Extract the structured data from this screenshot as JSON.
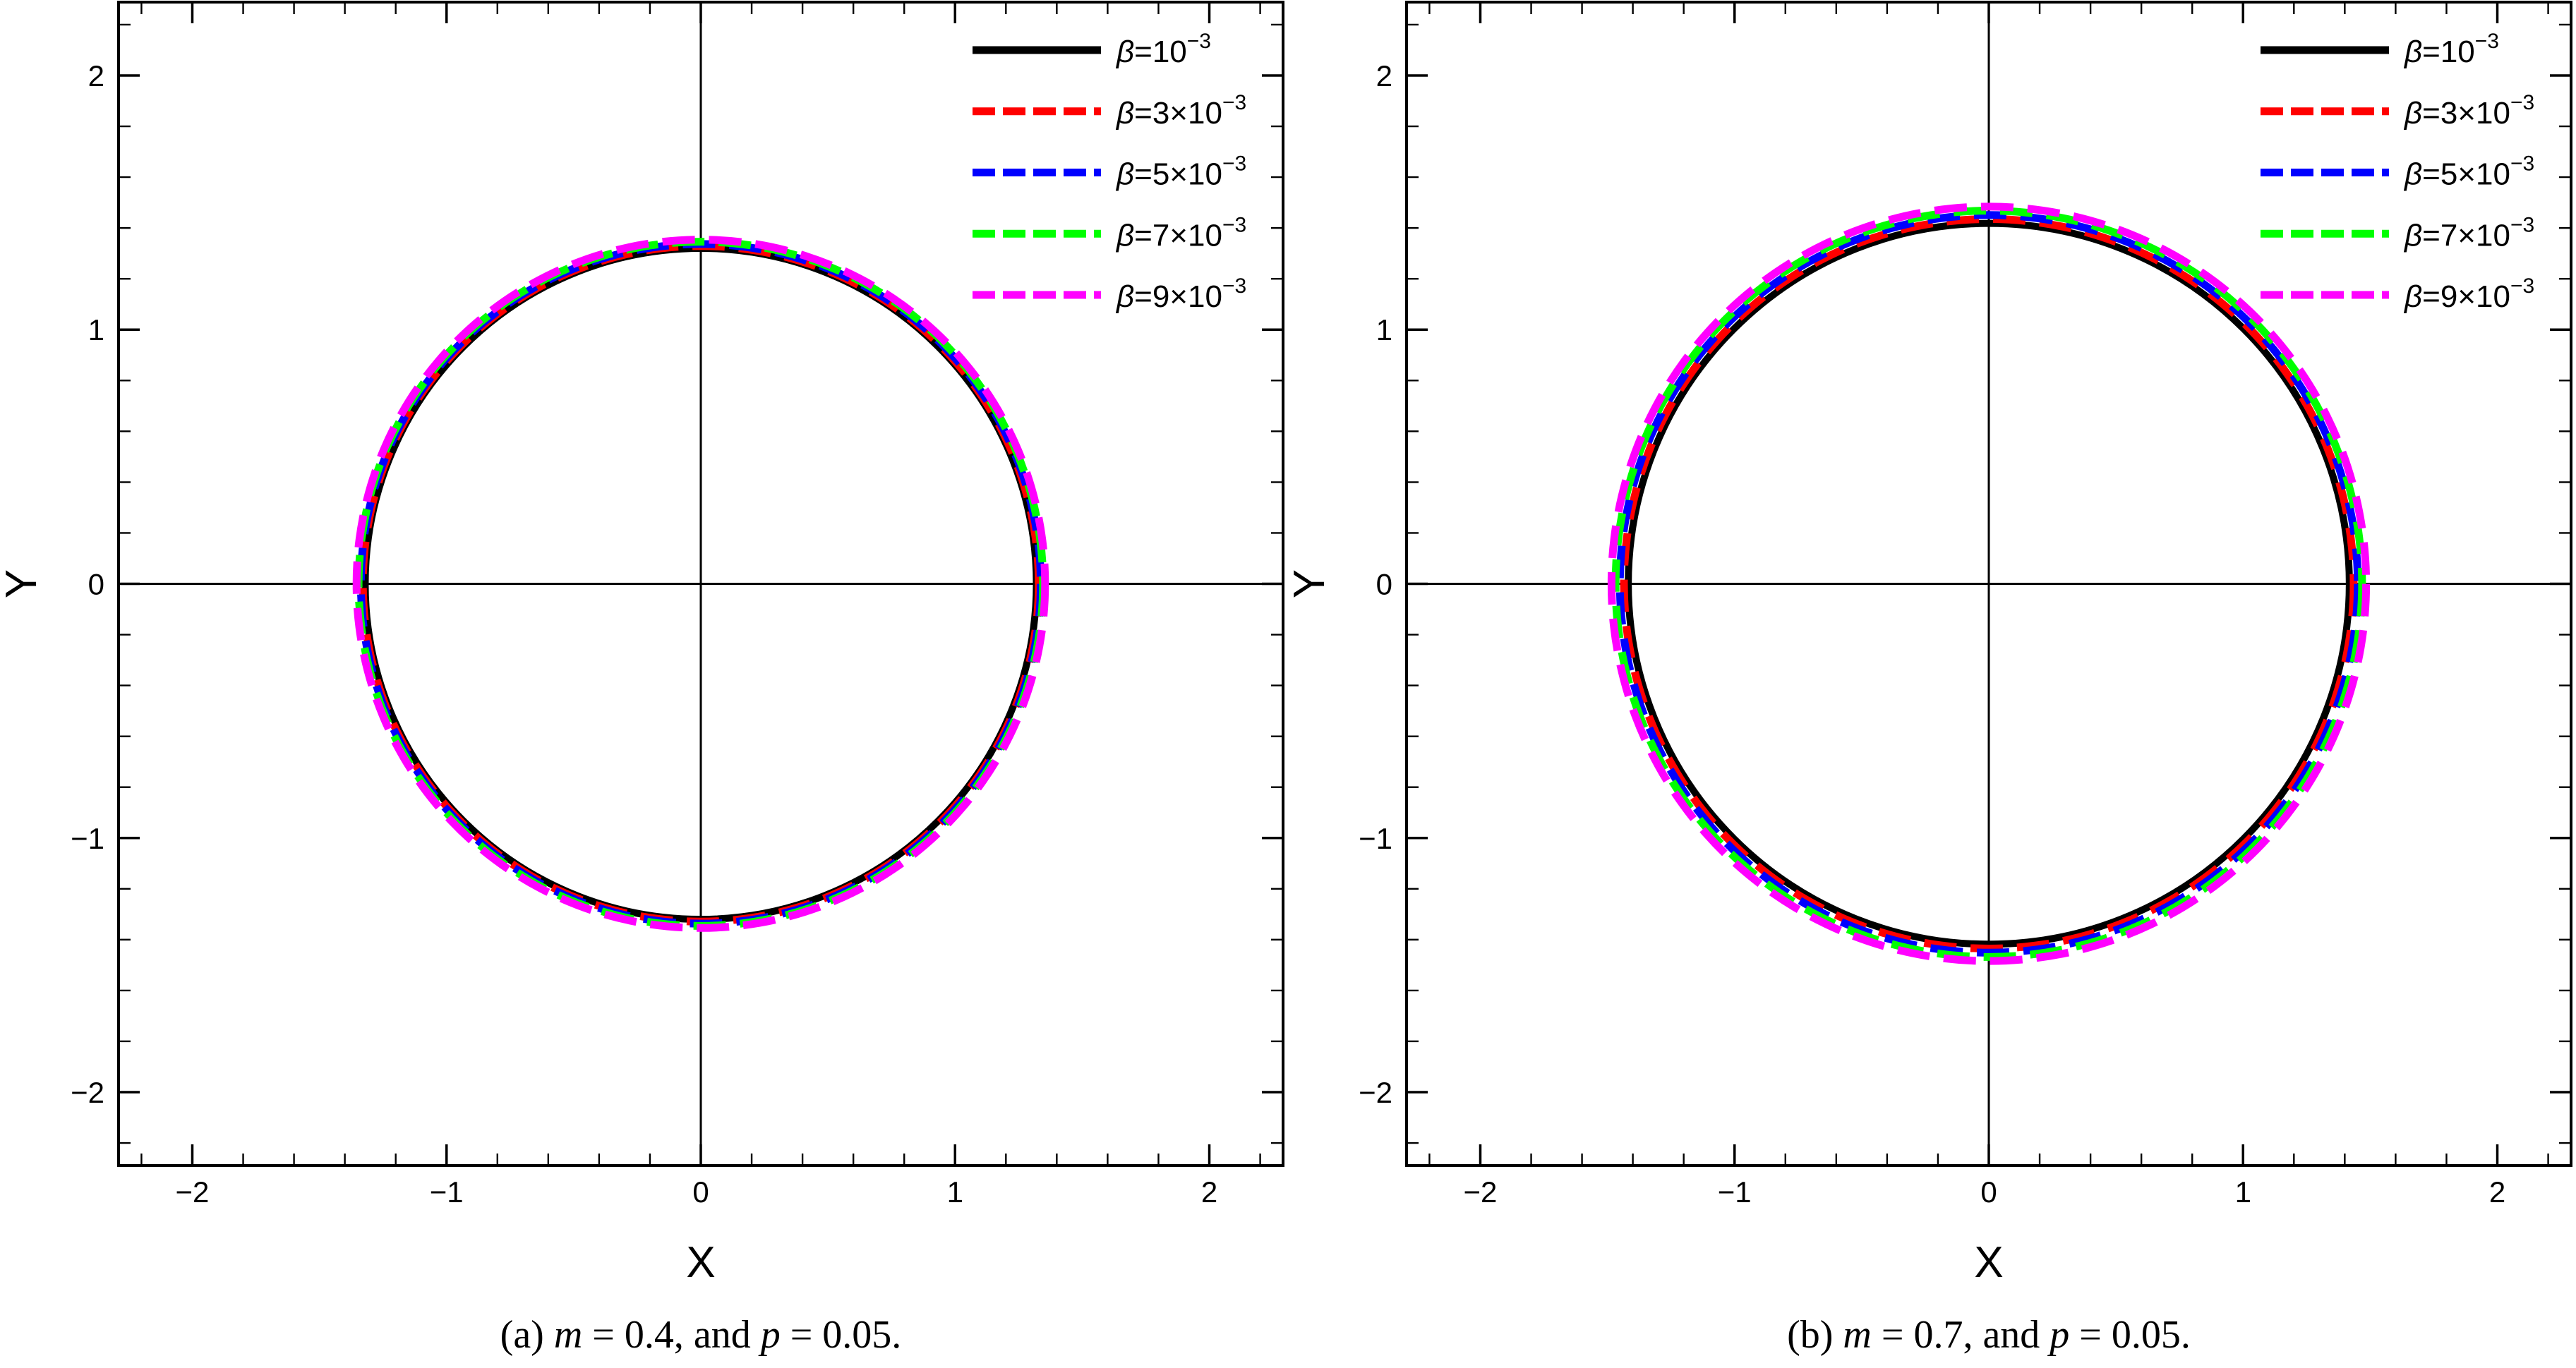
{
  "figure": {
    "background_color": "#FFFFFF",
    "foreground_color": "#000000"
  },
  "chart_data": [
    {
      "type": "line",
      "subtype": "circular-shadow-curves",
      "title": "",
      "caption": "(a) m = 0.4, and p = 0.05.",
      "caption_parts": [
        {
          "text": "(a) ",
          "italic": false
        },
        {
          "text": "m",
          "italic": true
        },
        {
          "text": " = 0.4, and ",
          "italic": false
        },
        {
          "text": "p",
          "italic": true
        },
        {
          "text": " = 0.05.",
          "italic": false
        }
      ],
      "xlabel": "X",
      "ylabel": "Y",
      "xlim": [
        -2.29,
        2.29
      ],
      "ylim": [
        -2.29,
        2.29
      ],
      "x_ticks": [
        -2,
        -1,
        0,
        1,
        2
      ],
      "y_ticks": [
        2,
        1,
        0,
        -1,
        -2
      ],
      "minor_tick_step": 0.2,
      "grid": false,
      "axes_through_origin": true,
      "legend_position": "top-right",
      "series": [
        {
          "name": "β=10⁻³",
          "label_parts": {
            "var": "β",
            "body": "=10",
            "sup": "−3"
          },
          "color": "#000000",
          "style": "solid",
          "shape": "circle",
          "center": [
            0,
            0
          ],
          "radius": 1.32
        },
        {
          "name": "β=3×10⁻³",
          "label_parts": {
            "var": "β",
            "body": "=3×10",
            "sup": "−3"
          },
          "color": "#FF0000",
          "style": "dashed",
          "shape": "circle",
          "center": [
            0,
            0
          ],
          "radius": 1.329
        },
        {
          "name": "β=5×10⁻³",
          "label_parts": {
            "var": "β",
            "body": "=5×10",
            "sup": "−3"
          },
          "color": "#0000FF",
          "style": "dashed",
          "shape": "circle",
          "center": [
            0,
            0
          ],
          "radius": 1.337
        },
        {
          "name": "β=7×10⁻³",
          "label_parts": {
            "var": "β",
            "body": "=7×10",
            "sup": "−3"
          },
          "color": "#00FF00",
          "style": "dashed",
          "shape": "circle",
          "center": [
            0,
            0
          ],
          "radius": 1.346
        },
        {
          "name": "β=9×10⁻³",
          "label_parts": {
            "var": "β",
            "body": "=9×10",
            "sup": "−3"
          },
          "color": "#FF00FF",
          "style": "dashed",
          "shape": "circle",
          "center": [
            0,
            0
          ],
          "radius": 1.354
        }
      ]
    },
    {
      "type": "line",
      "subtype": "circular-shadow-curves",
      "title": "",
      "caption": "(b) m = 0.7, and p = 0.05.",
      "caption_parts": [
        {
          "text": "(b) ",
          "italic": false
        },
        {
          "text": "m",
          "italic": true
        },
        {
          "text": " = 0.7, and ",
          "italic": false
        },
        {
          "text": "p",
          "italic": true
        },
        {
          "text": " = 0.05.",
          "italic": false
        }
      ],
      "xlabel": "X",
      "ylabel": "Y",
      "xlim": [
        -2.29,
        2.29
      ],
      "ylim": [
        -2.29,
        2.29
      ],
      "x_ticks": [
        -2,
        -1,
        0,
        1,
        2
      ],
      "y_ticks": [
        2,
        1,
        0,
        -1,
        -2
      ],
      "minor_tick_step": 0.2,
      "grid": false,
      "axes_through_origin": true,
      "legend_position": "top-right",
      "series": [
        {
          "name": "β=10⁻³",
          "label_parts": {
            "var": "β",
            "body": "=10",
            "sup": "−3"
          },
          "color": "#000000",
          "style": "solid",
          "shape": "circle",
          "center": [
            0,
            0
          ],
          "radius": 1.418
        },
        {
          "name": "β=3×10⁻³",
          "label_parts": {
            "var": "β",
            "body": "=3×10",
            "sup": "−3"
          },
          "color": "#FF0000",
          "style": "dashed",
          "shape": "circle",
          "center": [
            0,
            0
          ],
          "radius": 1.435
        },
        {
          "name": "β=5×10⁻³",
          "label_parts": {
            "var": "β",
            "body": "=5×10",
            "sup": "−3"
          },
          "color": "#0000FF",
          "style": "dashed",
          "shape": "circle",
          "center": [
            0,
            0
          ],
          "radius": 1.451
        },
        {
          "name": "β=7×10⁻³",
          "label_parts": {
            "var": "β",
            "body": "=7×10",
            "sup": "−3"
          },
          "color": "#00FF00",
          "style": "dashed",
          "shape": "circle",
          "center": [
            0,
            0
          ],
          "radius": 1.468
        },
        {
          "name": "β=9×10⁻³",
          "label_parts": {
            "var": "β",
            "body": "=9×10",
            "sup": "−3"
          },
          "color": "#FF00FF",
          "style": "dashed",
          "shape": "circle",
          "center": [
            0,
            0
          ],
          "radius": 1.484
        }
      ]
    }
  ]
}
